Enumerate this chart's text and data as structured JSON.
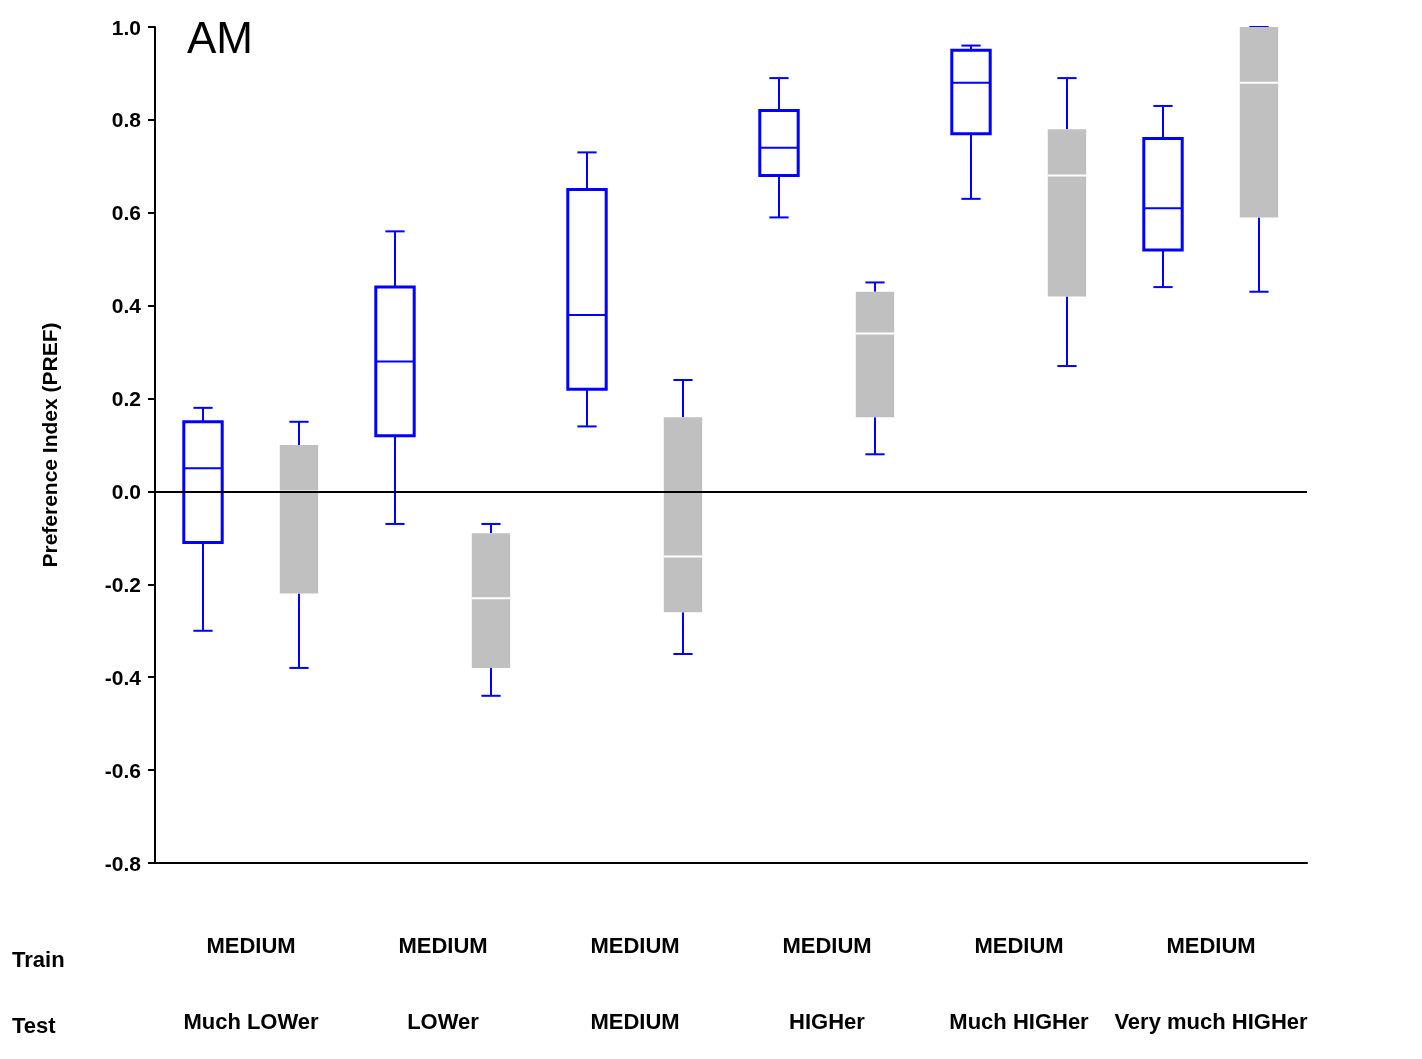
{
  "chart_data": {
    "type": "box",
    "title": "AM",
    "ylabel": "Preference Index (PREF)",
    "categories": [
      "MEDIUM\nMuch LOWer",
      "MEDIUM\nLOWer",
      "MEDIUM\nMEDIUM",
      "MEDIUM\nHIGHer",
      "MEDIUM\nMuch HIGHer",
      "MEDIUM\nVery much HIGHer"
    ],
    "annotations": [
      "Train",
      "Test"
    ],
    "ylim": [
      -0.8,
      1.0
    ],
    "yticks": [
      {
        "value": -0.8,
        "label": "-0.8"
      },
      {
        "value": -0.6,
        "label": "-0.6"
      },
      {
        "value": -0.4,
        "label": "-0.4"
      },
      {
        "value": -0.2,
        "label": "-0.2"
      },
      {
        "value": 0,
        "label": "0.0"
      },
      {
        "value": 0.2,
        "label": "0.2"
      },
      {
        "value": 0.4,
        "label": "0.4"
      },
      {
        "value": 0.6,
        "label": "0.6"
      },
      {
        "value": 0.8,
        "label": "0.8"
      },
      {
        "value": 1.0,
        "label": "1.0"
      }
    ],
    "grid": false,
    "ref_lines": [
      {
        "axis": "y",
        "value": 0,
        "color": "#000000"
      }
    ],
    "series": [
      {
        "color": "#0000ff",
        "boxes": [
          {
            "low": -0.3,
            "q1": -0.11,
            "median": 0.05,
            "q3": 0.15,
            "high": 0.18
          },
          {
            "low": -0.07,
            "q1": 0.12,
            "median": 0.28,
            "q3": 0.44,
            "high": 0.56
          },
          {
            "low": 0.14,
            "q1": 0.22,
            "median": 0.38,
            "q3": 0.65,
            "high": 0.73
          },
          {
            "low": 0.59,
            "q1": 0.68,
            "median": 0.74,
            "q3": 0.82,
            "high": 0.89
          },
          {
            "low": 0.63,
            "q1": 0.77,
            "median": 0.88,
            "q3": 0.95,
            "high": 0.96
          },
          {
            "low": 0.44,
            "q1": 0.52,
            "median": 0.61,
            "q3": 0.76,
            "high": 0.83
          }
        ]
      },
      {
        "color": "#c0c0c0",
        "boxes": [
          {
            "low": -0.38,
            "q1": -0.22,
            "median": 0.0,
            "q3": 0.1,
            "high": 0.15
          },
          {
            "low": -0.44,
            "q1": -0.38,
            "median": -0.23,
            "q3": -0.09,
            "high": -0.07
          },
          {
            "low": -0.35,
            "q1": -0.26,
            "median": -0.14,
            "q3": 0.16,
            "high": 0.24
          },
          {
            "low": 0.08,
            "q1": 0.16,
            "median": 0.34,
            "q3": 0.43,
            "high": 0.45
          },
          {
            "low": 0.27,
            "q1": 0.42,
            "median": 0.68,
            "q3": 0.78,
            "high": 0.89
          },
          {
            "low": 0.43,
            "q1": 0.59,
            "median": 0.88,
            "q3": 1.0,
            "high": 1.0
          }
        ]
      }
    ]
  }
}
